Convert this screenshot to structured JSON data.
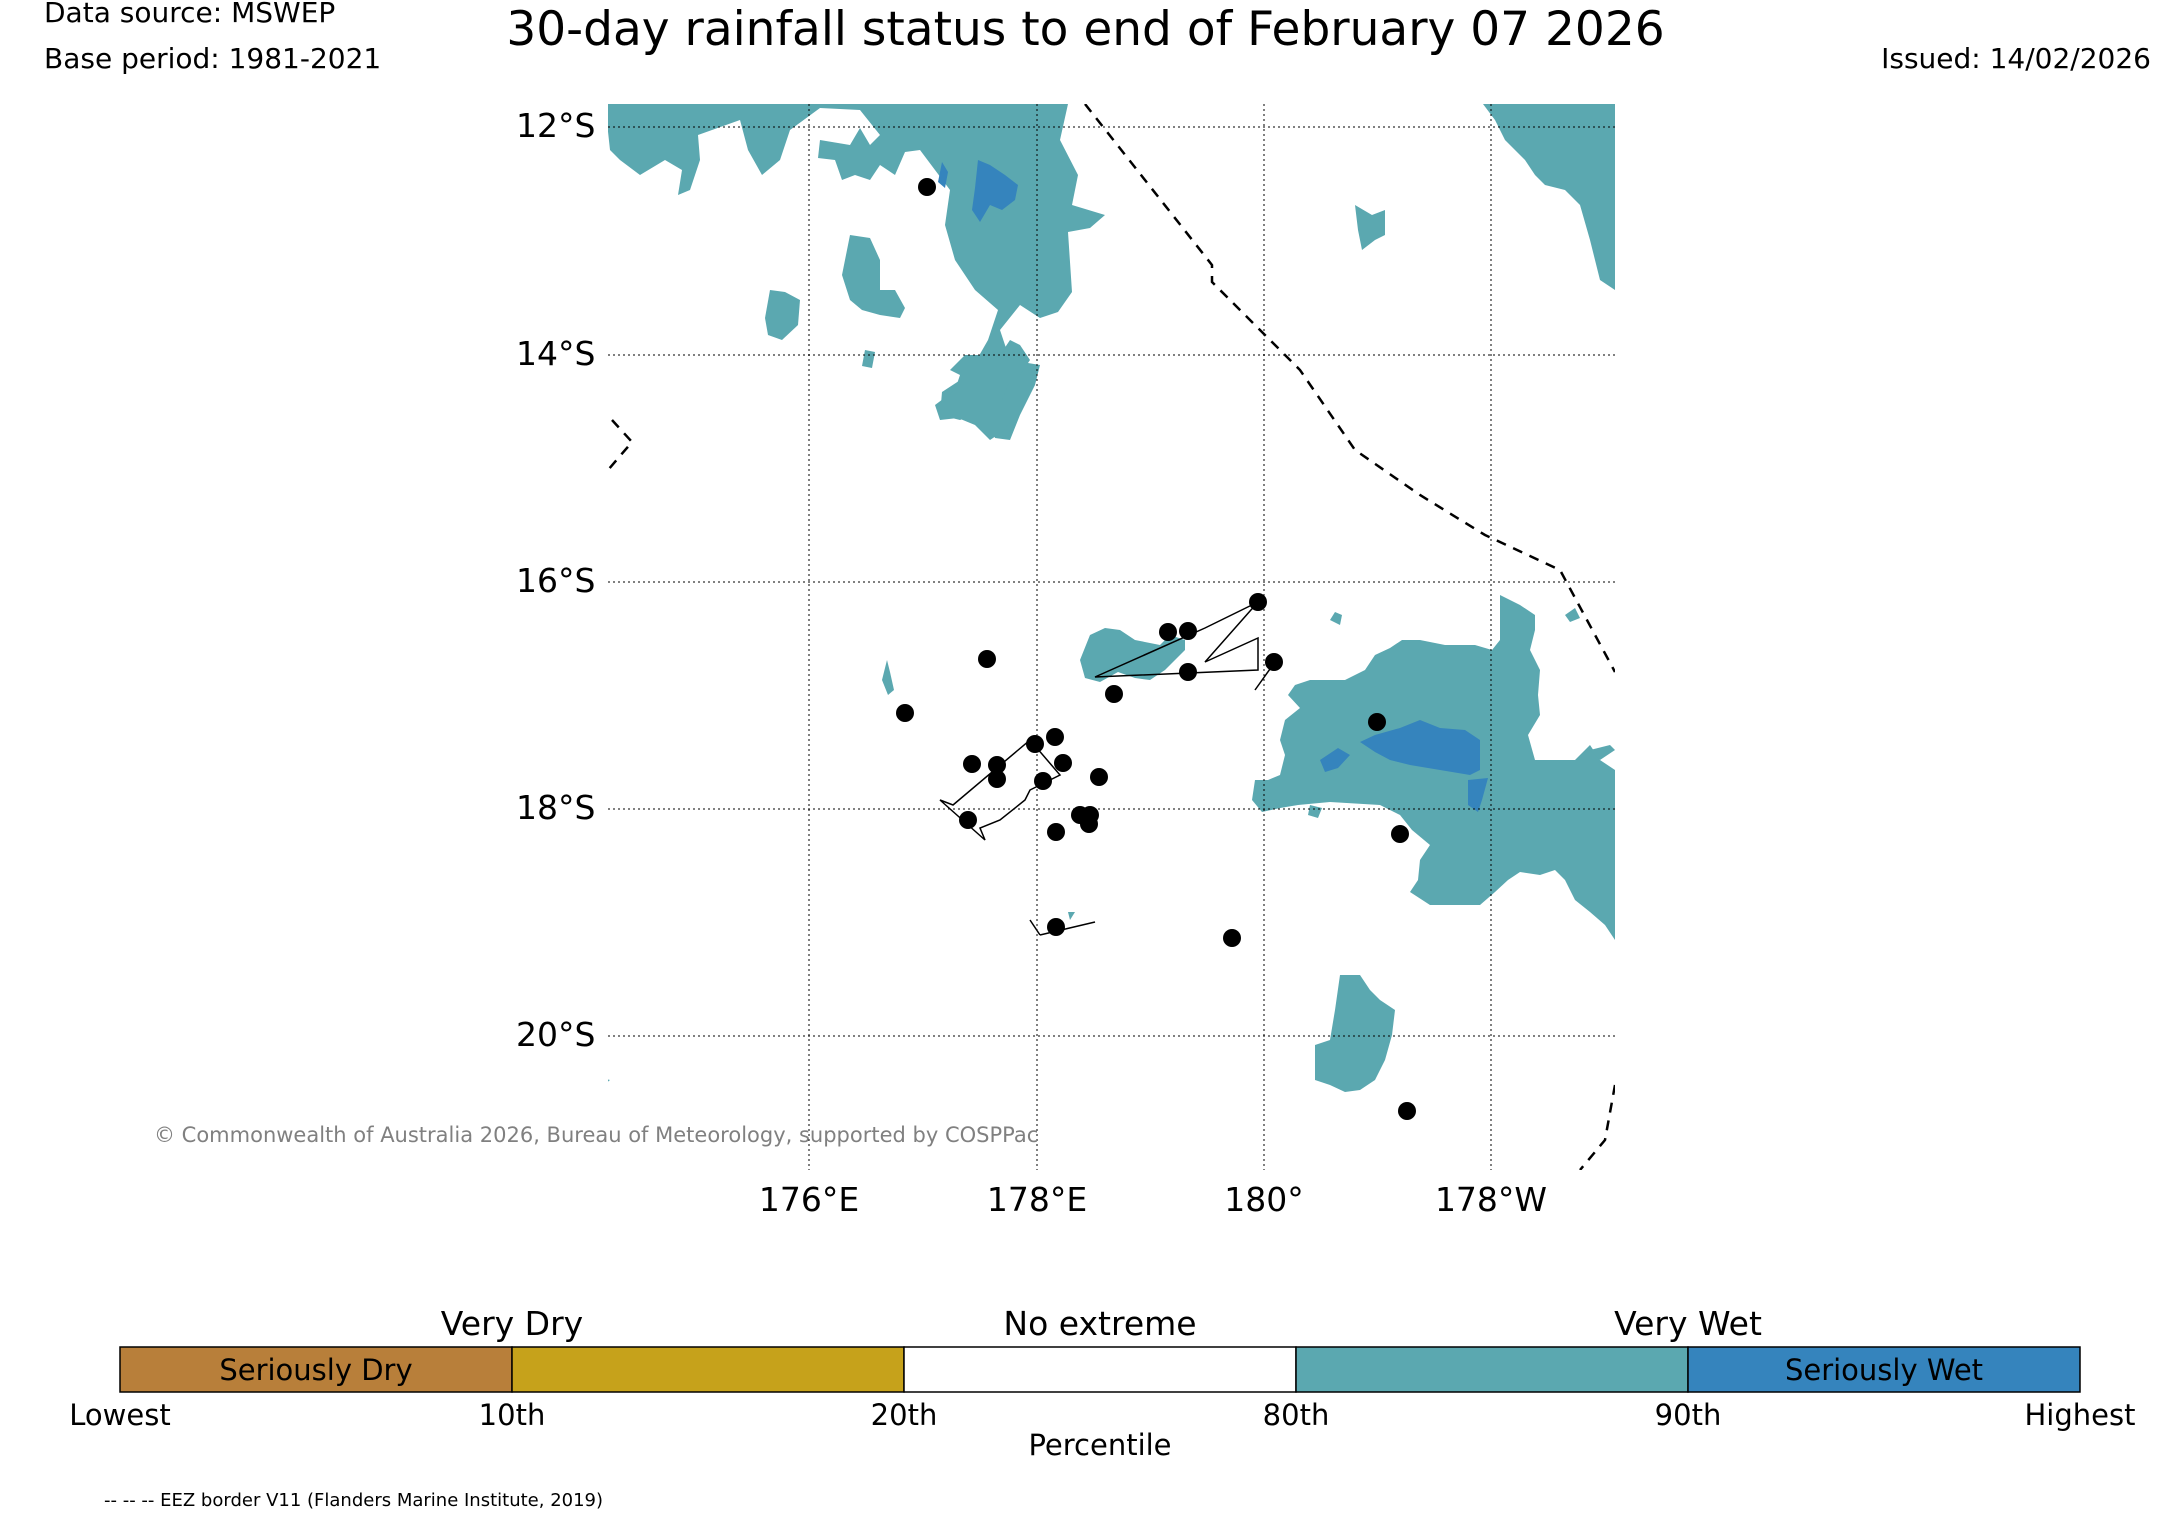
{
  "header": {
    "title": "30-day rainfall status to end of February 07 2026",
    "data_source": "Data source: MSWEP",
    "base_period": "Base period: 1981-2021",
    "issued": "Issued: 14/02/2026"
  },
  "map": {
    "lat_labels": [
      "12°S",
      "14°S",
      "16°S",
      "18°S",
      "20°S"
    ],
    "lon_labels": [
      "176°E",
      "178°E",
      "180°",
      "178°W"
    ],
    "colors": {
      "very_wet": "#5ba8b0",
      "seriously_wet": "#3584bd",
      "border": "#000000"
    },
    "copyright": "© Commonwealth of Australia 2026, Bureau of Meteorology, supported by COSPPac"
  },
  "legend": {
    "heading_very_dry": "Very Dry",
    "heading_no_extreme": "No extreme",
    "heading_very_wet": "Very Wet",
    "segments": [
      {
        "label": "Seriously Dry",
        "color": "#b87f3a"
      },
      {
        "label": "",
        "color": "#c6a21b"
      },
      {
        "label": "",
        "color": "#ffffff"
      },
      {
        "label": "",
        "color": "#5ba8b0"
      },
      {
        "label": "Seriously Wet",
        "color": "#3584bd"
      }
    ],
    "ticks": [
      "Lowest",
      "10th",
      "20th",
      "80th",
      "90th",
      "Highest"
    ],
    "axis_label": "Percentile"
  },
  "footer": {
    "eez_note": "-- -- -- EEZ border V11 (Flanders Marine Institute, 2019)"
  }
}
